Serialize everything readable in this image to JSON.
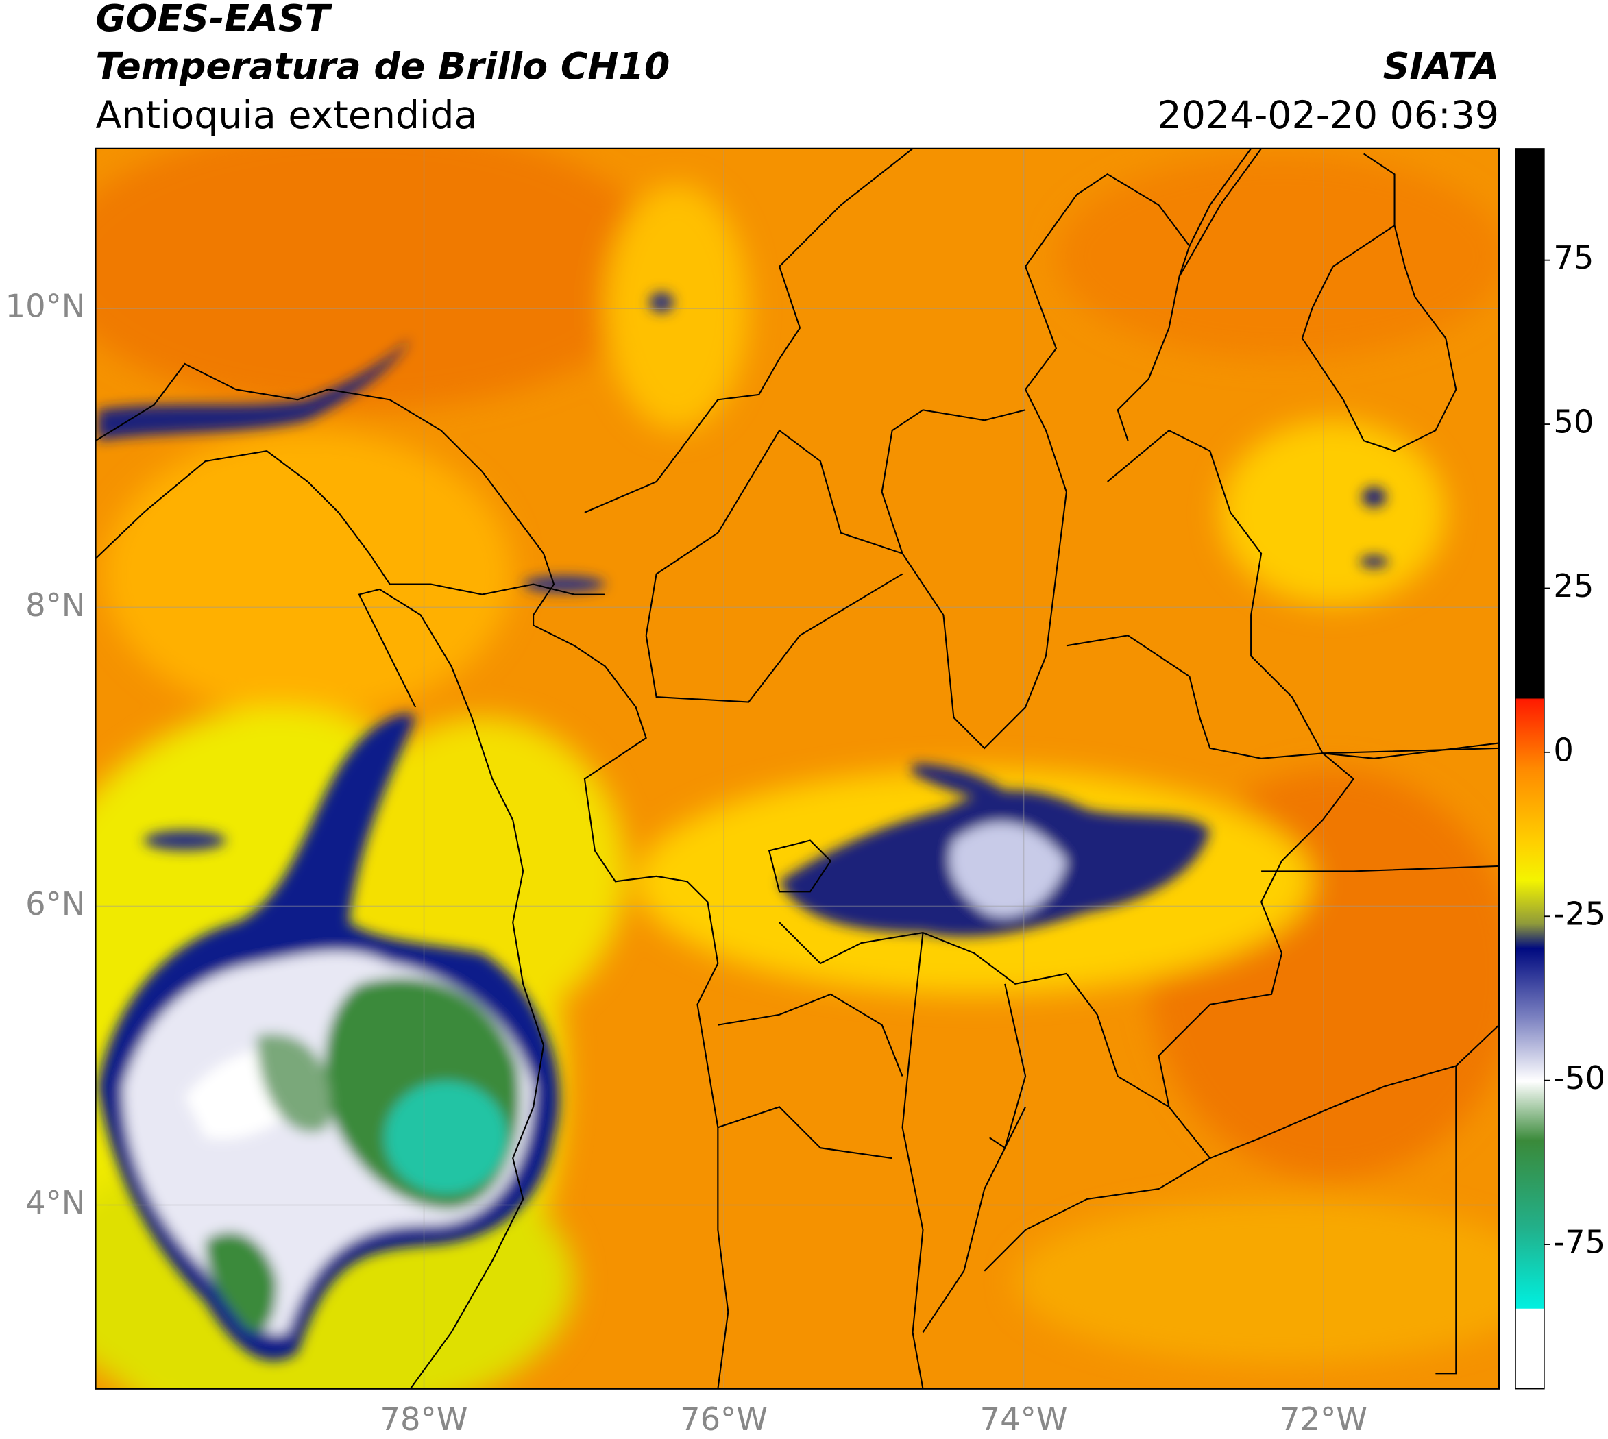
{
  "header": {
    "title": "GOES-EAST",
    "subtitle": "Temperatura de Brillo CH10",
    "region": "Antioquia extendida",
    "source": "SIATA",
    "timestamp": "2024-02-20 06:39"
  },
  "chart_data": {
    "type": "map",
    "xlim": [
      -80.19,
      -70.83
    ],
    "ylim": [
      2.77,
      11.07
    ],
    "xticks": [
      {
        "value": -78,
        "label": "78°W"
      },
      {
        "value": -76,
        "label": "76°W"
      },
      {
        "value": -74,
        "label": "74°W"
      },
      {
        "value": -72,
        "label": "72°W"
      }
    ],
    "yticks": [
      {
        "value": 4,
        "label": "4°N"
      },
      {
        "value": 6,
        "label": "6°N"
      },
      {
        "value": 8,
        "label": "8°N"
      },
      {
        "value": 10,
        "label": "10°N"
      }
    ],
    "grid": true,
    "colorbar": {
      "lim": [
        -97,
        92
      ],
      "ticks": [
        -75,
        -50,
        -25,
        0,
        25,
        50,
        75
      ]
    }
  }
}
